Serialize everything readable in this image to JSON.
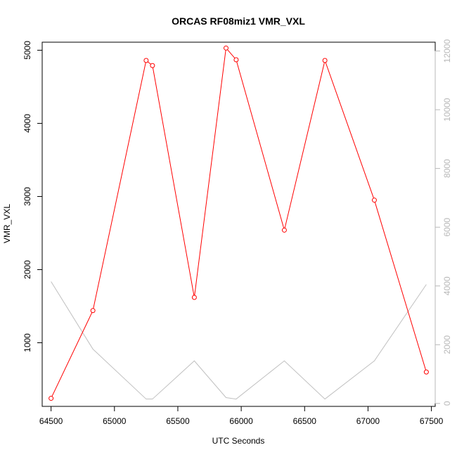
{
  "chart_data": {
    "type": "line",
    "title": "ORCAS RF08miz1 VMR_VXL",
    "xlabel": "UTC Seconds",
    "ylabel": "VMR_VXL",
    "xlim": [
      64430,
      67530
    ],
    "ylim": [
      130,
      5110
    ],
    "y2lim": [
      -100,
      12300
    ],
    "x_ticks": [
      64500,
      65000,
      65500,
      66000,
      66500,
      67000,
      67500
    ],
    "y_ticks": [
      1000,
      2000,
      3000,
      4000,
      5000
    ],
    "y2_ticks": [
      0,
      2000,
      4000,
      6000,
      8000,
      10000,
      12000
    ],
    "grid": false,
    "colors": {
      "series_primary": "#ff0000",
      "series_secondary": "#c0c0c0",
      "axis": "#000000",
      "axis_secondary": "#b8b8b8"
    },
    "series": [
      {
        "axis": "left",
        "markers": true,
        "x": [
          64500,
          64830,
          65250,
          65300,
          65630,
          65880,
          65960,
          66340,
          66660,
          67050,
          67460
        ],
        "y": [
          240,
          1440,
          4860,
          4790,
          1620,
          5030,
          4870,
          2540,
          4860,
          2950,
          600
        ]
      },
      {
        "axis": "right",
        "markers": false,
        "x": [
          64500,
          64830,
          65250,
          65300,
          65630,
          65880,
          65960,
          66340,
          66660,
          67050,
          67460
        ],
        "y": [
          4150,
          1850,
          150,
          150,
          1450,
          200,
          150,
          1450,
          150,
          1450,
          4050
        ]
      }
    ]
  }
}
